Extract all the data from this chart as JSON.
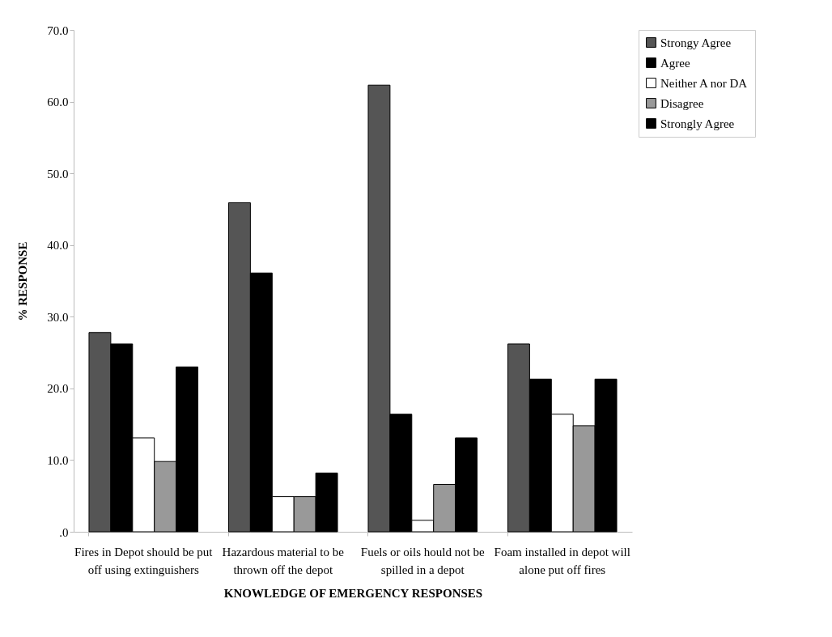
{
  "chart_data": {
    "type": "bar",
    "xlabel": "KNOWLEDGE OF EMERGENCY RESPONSES",
    "ylabel": "% RESPONSE",
    "categories": [
      "Fires in Depot should be put off using extinguishers",
      "Hazardous material to be thrown off the depot",
      "Fuels or oils hould not be spilled in a depot",
      "Foam installed in depot will alone put off fires"
    ],
    "series": [
      {
        "name": "Strongy Agree",
        "color": "#555555",
        "values": [
          27.8,
          45.9,
          62.3,
          26.2
        ]
      },
      {
        "name": "Agree",
        "color": "#000000",
        "values": [
          26.2,
          36.1,
          16.4,
          21.3
        ]
      },
      {
        "name": "Neither A nor DA",
        "color": "#ffffff",
        "values": [
          13.1,
          4.9,
          1.6,
          16.4
        ]
      },
      {
        "name": "Disagree",
        "color": "#999999",
        "values": [
          9.8,
          4.9,
          6.6,
          14.8
        ]
      },
      {
        "name": "Strongly Agree",
        "color": "#000000",
        "values": [
          23.0,
          8.2,
          13.1,
          21.3
        ]
      }
    ],
    "ylim": [
      0,
      70
    ],
    "yticks": [
      {
        "value": 0,
        "label": ".0"
      },
      {
        "value": 10,
        "label": "10.0"
      },
      {
        "value": 20,
        "label": "20.0"
      },
      {
        "value": 30,
        "label": "30.0"
      },
      {
        "value": 40,
        "label": "40.0"
      },
      {
        "value": 50,
        "label": "50.0"
      },
      {
        "value": 60,
        "label": "60.0"
      },
      {
        "value": 70,
        "label": "70.0"
      }
    ],
    "grid": false,
    "legend": "right"
  }
}
